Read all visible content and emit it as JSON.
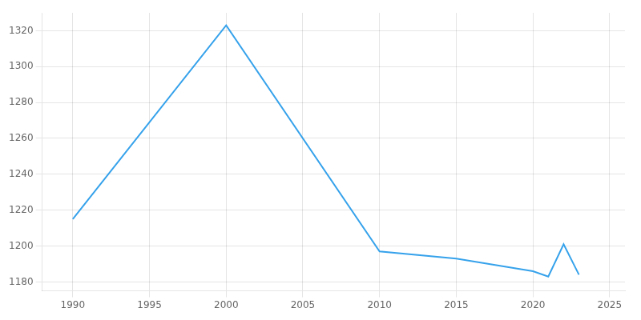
{
  "chart_data": {
    "type": "line",
    "x": [
      1990,
      2000,
      2010,
      2015,
      2020,
      2021,
      2022,
      2023
    ],
    "values": [
      1215,
      1323,
      1197,
      1193,
      1186,
      1183,
      1201,
      1184
    ],
    "xlim": [
      1988,
      2026
    ],
    "xticks": [
      1990,
      1995,
      2000,
      2005,
      2010,
      2015,
      2020,
      2025
    ],
    "ylim": [
      1175,
      1330
    ],
    "yticks": [
      1180,
      1200,
      1220,
      1240,
      1260,
      1280,
      1300,
      1320
    ],
    "grid": true
  }
}
